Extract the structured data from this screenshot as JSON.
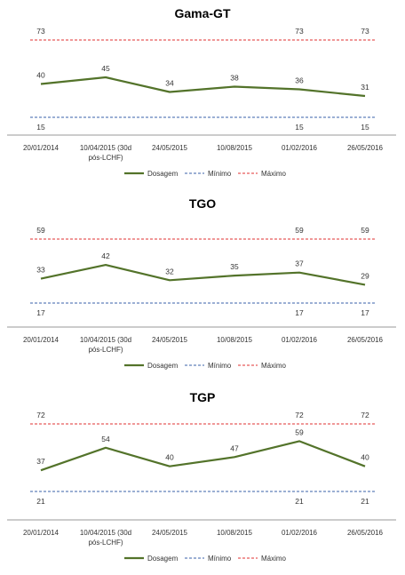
{
  "colors": {
    "dosagem": "#53732a",
    "minimo": "#3a62a8",
    "maximo": "#e03030",
    "axis": "#9a9a9a"
  },
  "chart_data": [
    {
      "type": "line",
      "title": "Gama-GT",
      "categories": [
        "20/01/2014",
        "10/04/2015 (30d pós-LCHF)",
        "24/05/2015",
        "10/08/2015",
        "01/02/2016",
        "26/05/2016"
      ],
      "series": [
        {
          "name": "Dosagem",
          "values": [
            40,
            45,
            34,
            38,
            36,
            31
          ]
        },
        {
          "name": "Mínimo",
          "values": [
            15,
            15,
            15,
            15,
            15,
            15
          ]
        },
        {
          "name": "Máximo",
          "values": [
            73,
            73,
            73,
            73,
            73,
            73
          ]
        }
      ],
      "ref_labels_at": [
        0,
        4,
        5
      ],
      "legend": "bottom",
      "grid": false
    },
    {
      "type": "line",
      "title": "TGO",
      "categories": [
        "20/01/2014",
        "10/04/2015 (30d pós-LCHF)",
        "24/05/2015",
        "10/08/2015",
        "01/02/2016",
        "26/05/2016"
      ],
      "series": [
        {
          "name": "Dosagem",
          "values": [
            33,
            42,
            32,
            35,
            37,
            29
          ]
        },
        {
          "name": "Mínimo",
          "values": [
            17,
            17,
            17,
            17,
            17,
            17
          ]
        },
        {
          "name": "Máximo",
          "values": [
            59,
            59,
            59,
            59,
            59,
            59
          ]
        }
      ],
      "ref_labels_at": [
        0,
        4,
        5
      ],
      "legend": "bottom",
      "grid": false
    },
    {
      "type": "line",
      "title": "TGP",
      "categories": [
        "20/01/2014",
        "10/04/2015 (30d pós-LCHF)",
        "24/05/2015",
        "10/08/2015",
        "01/02/2016",
        "26/05/2016"
      ],
      "series": [
        {
          "name": "Dosagem",
          "values": [
            37,
            54,
            40,
            47,
            59,
            40
          ]
        },
        {
          "name": "Mínimo",
          "values": [
            21,
            21,
            21,
            21,
            21,
            21
          ]
        },
        {
          "name": "Máximo",
          "values": [
            72,
            72,
            72,
            72,
            72,
            72
          ]
        }
      ],
      "ref_labels_at": [
        0,
        4,
        5
      ],
      "legend": "bottom",
      "grid": false
    }
  ]
}
